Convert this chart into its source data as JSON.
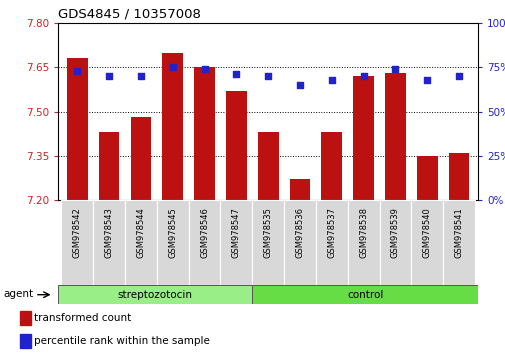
{
  "title": "GDS4845 / 10357008",
  "samples": [
    "GSM978542",
    "GSM978543",
    "GSM978544",
    "GSM978545",
    "GSM978546",
    "GSM978547",
    "GSM978535",
    "GSM978536",
    "GSM978537",
    "GSM978538",
    "GSM978539",
    "GSM978540",
    "GSM978541"
  ],
  "red_values": [
    7.68,
    7.43,
    7.48,
    7.7,
    7.65,
    7.57,
    7.43,
    7.27,
    7.43,
    7.62,
    7.63,
    7.35,
    7.36
  ],
  "blue_values": [
    73,
    70,
    70,
    75,
    74,
    71,
    70,
    65,
    68,
    70,
    74,
    68,
    70
  ],
  "ylim_left": [
    7.2,
    7.8
  ],
  "ylim_right": [
    0,
    100
  ],
  "yticks_left": [
    7.2,
    7.35,
    7.5,
    7.65,
    7.8
  ],
  "yticks_right": [
    0,
    25,
    50,
    75,
    100
  ],
  "gridlines": [
    7.35,
    7.5,
    7.65
  ],
  "group1_label": "streptozotocin",
  "group1_count": 6,
  "group2_label": "control",
  "group2_count": 7,
  "agent_label": "agent",
  "legend1": "transformed count",
  "legend2": "percentile rank within the sample",
  "bar_color": "#bb1111",
  "dot_color": "#2222cc",
  "group1_color": "#99ee88",
  "group2_color": "#66dd44",
  "tick_color_left": "#cc2222",
  "tick_color_right": "#2222cc"
}
